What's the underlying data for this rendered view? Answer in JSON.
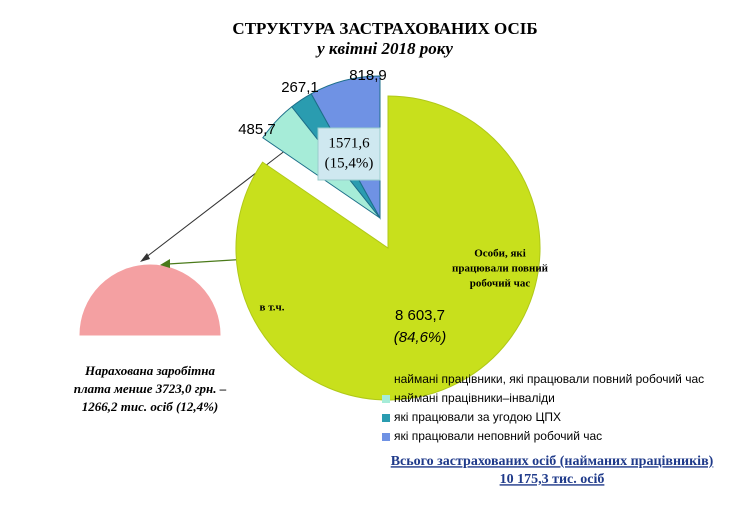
{
  "chart_data": {
    "type": "pie",
    "title": "СТРУКТУРА ЗАСТРАХОВАНИХ ОСІБ",
    "subtitle": "у квітні 2018 року",
    "categories": [
      "наймані працівники, які працювали повний робочий час",
      "наймані працівники–інваліди",
      "які працювали за угодою ЦПХ",
      "які працювали неповний робочий час"
    ],
    "values": [
      8603.7,
      485.7,
      267.1,
      818.9
    ],
    "value_labels": [
      "8 603,7",
      "485,7",
      "267,1",
      "818,9"
    ],
    "colors": [
      "#c8e01c",
      "#a6ecd8",
      "#2a9cb0",
      "#6f92e4"
    ],
    "legend": "bottom-right",
    "annotations": {
      "full_share": "(84,6%)",
      "part_total": [
        "1571,6",
        "(15,4%)"
      ],
      "full_time_note": [
        "Особи, які",
        "працювали повний",
        "робочий час"
      ],
      "incl": "в т.ч.",
      "low_wage": [
        "Нарахована заробітна",
        "плата менше 3723,0 грн. –",
        "1266,2 тис. осіб (12,4%)"
      ]
    },
    "total": [
      "Всього застрахованих  осіб (найманих працівників)",
      "10 175,3 тис. осіб"
    ]
  }
}
